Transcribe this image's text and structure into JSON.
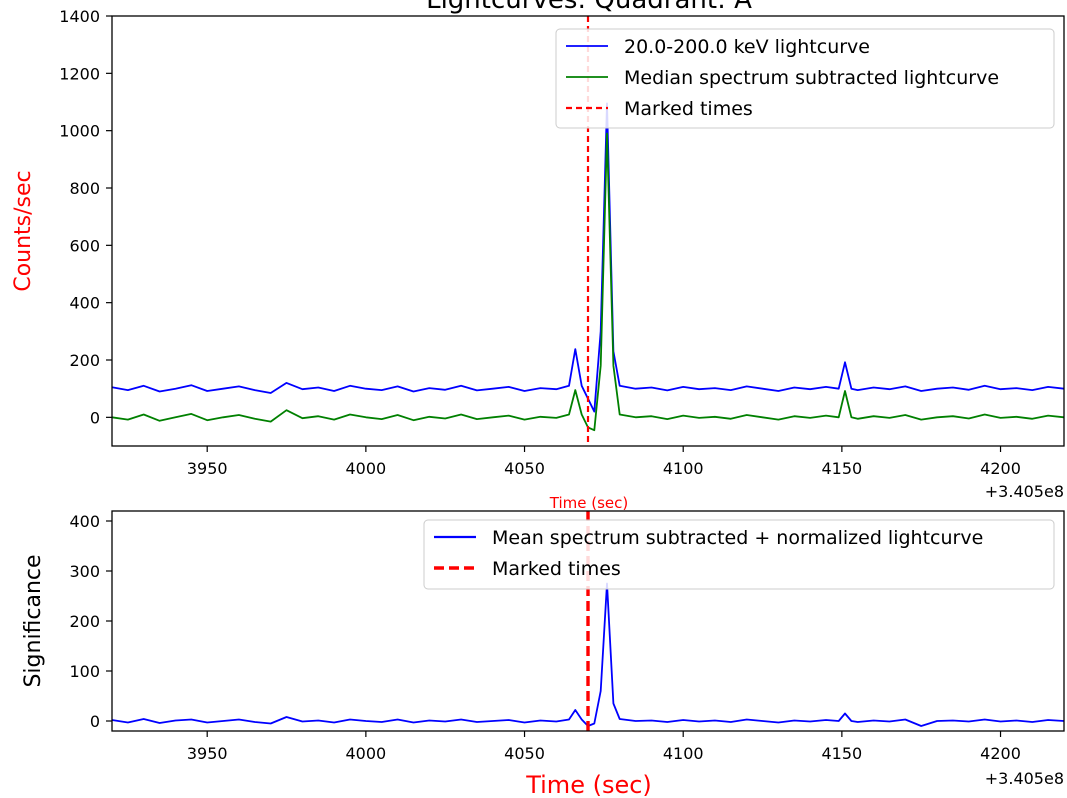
{
  "title": "Lightcurves: Quadrant: A",
  "axis_offset_label": "+3.405e8",
  "colors": {
    "lightcurve": "#0000ff",
    "median_subtracted": "#008000",
    "marked": "#ff0000"
  },
  "chart_data": [
    {
      "type": "line",
      "title": "Lightcurves: Quadrant: A",
      "xlabel": "Time (sec)",
      "ylabel": "Counts/sec",
      "xlim": [
        3920,
        4220
      ],
      "ylim": [
        -100,
        1400
      ],
      "x_offset": "+3.405e8",
      "x_ticks": [
        3950,
        4000,
        4050,
        4100,
        4150,
        4200
      ],
      "y_ticks": [
        0,
        200,
        400,
        600,
        800,
        1000,
        1200,
        1400
      ],
      "grid": false,
      "legend_position": "top-right",
      "series": [
        {
          "name": "20.0-200.0 keV lightcurve",
          "color": "#0000ff",
          "x": [
            3920,
            3925,
            3930,
            3935,
            3940,
            3945,
            3950,
            3955,
            3960,
            3965,
            3970,
            3975,
            3980,
            3985,
            3990,
            3995,
            4000,
            4005,
            4010,
            4015,
            4020,
            4025,
            4030,
            4035,
            4040,
            4045,
            4050,
            4055,
            4060,
            4064,
            4066,
            4068,
            4070,
            4072,
            4074,
            4076,
            4078,
            4080,
            4085,
            4090,
            4095,
            4100,
            4105,
            4110,
            4115,
            4120,
            4125,
            4130,
            4135,
            4140,
            4145,
            4149,
            4151,
            4153,
            4155,
            4160,
            4165,
            4170,
            4175,
            4180,
            4185,
            4190,
            4195,
            4200,
            4205,
            4210,
            4215,
            4220
          ],
          "y": [
            105,
            95,
            110,
            90,
            100,
            112,
            92,
            100,
            108,
            95,
            85,
            120,
            98,
            104,
            92,
            110,
            100,
            95,
            108,
            90,
            102,
            96,
            110,
            94,
            100,
            106,
            92,
            102,
            98,
            110,
            238,
            110,
            65,
            20,
            300,
            1095,
            230,
            110,
            100,
            104,
            94,
            106,
            98,
            102,
            95,
            108,
            100,
            92,
            104,
            98,
            106,
            100,
            192,
            100,
            95,
            104,
            98,
            108,
            92,
            100,
            104,
            96,
            110,
            98,
            102,
            95,
            106,
            100
          ]
        },
        {
          "name": "Median spectrum subtracted lightcurve",
          "color": "#008000",
          "x": [
            3920,
            3925,
            3930,
            3935,
            3940,
            3945,
            3950,
            3955,
            3960,
            3965,
            3970,
            3975,
            3980,
            3985,
            3990,
            3995,
            4000,
            4005,
            4010,
            4015,
            4020,
            4025,
            4030,
            4035,
            4040,
            4045,
            4050,
            4055,
            4060,
            4064,
            4066,
            4068,
            4070,
            4072,
            4074,
            4076,
            4078,
            4080,
            4085,
            4090,
            4095,
            4100,
            4105,
            4110,
            4115,
            4120,
            4125,
            4130,
            4135,
            4140,
            4145,
            4149,
            4151,
            4153,
            4155,
            4160,
            4165,
            4170,
            4175,
            4180,
            4185,
            4190,
            4195,
            4200,
            4205,
            4210,
            4215,
            4220
          ],
          "y": [
            0,
            -8,
            10,
            -12,
            0,
            12,
            -10,
            0,
            8,
            -5,
            -15,
            25,
            -3,
            4,
            -8,
            10,
            0,
            -6,
            8,
            -10,
            2,
            -4,
            10,
            -6,
            0,
            6,
            -8,
            2,
            -2,
            10,
            95,
            10,
            -35,
            -45,
            180,
            990,
            180,
            10,
            0,
            4,
            -6,
            6,
            -2,
            2,
            -5,
            8,
            0,
            -8,
            4,
            -2,
            6,
            0,
            92,
            0,
            -5,
            4,
            -2,
            8,
            -8,
            0,
            4,
            -4,
            10,
            -2,
            2,
            -5,
            6,
            0
          ]
        }
      ],
      "marked_times": [
        4070
      ],
      "marked_label": "Marked times"
    },
    {
      "type": "line",
      "xlabel": "Time (sec)",
      "ylabel": "Significance",
      "xlim": [
        3920,
        4220
      ],
      "ylim": [
        -20,
        420
      ],
      "x_offset": "+3.405e8",
      "x_ticks": [
        3950,
        4000,
        4050,
        4100,
        4150,
        4200
      ],
      "y_ticks": [
        0,
        100,
        200,
        300,
        400
      ],
      "grid": false,
      "legend_position": "top-right",
      "series": [
        {
          "name": "Mean spectrum subtracted + normalized lightcurve",
          "color": "#0000ff",
          "x": [
            3920,
            3925,
            3930,
            3935,
            3940,
            3945,
            3950,
            3955,
            3960,
            3965,
            3970,
            3975,
            3980,
            3985,
            3990,
            3995,
            4000,
            4005,
            4010,
            4015,
            4020,
            4025,
            4030,
            4035,
            4040,
            4045,
            4050,
            4055,
            4060,
            4064,
            4066,
            4068,
            4070,
            4072,
            4074,
            4076,
            4078,
            4080,
            4085,
            4090,
            4095,
            4100,
            4105,
            4110,
            4115,
            4120,
            4125,
            4130,
            4135,
            4140,
            4145,
            4149,
            4151,
            4153,
            4155,
            4160,
            4165,
            4170,
            4175,
            4180,
            4185,
            4190,
            4195,
            4200,
            4205,
            4210,
            4215,
            4220
          ],
          "y": [
            2,
            -3,
            4,
            -4,
            1,
            3,
            -3,
            0,
            3,
            -2,
            -5,
            8,
            -1,
            1,
            -3,
            3,
            0,
            -2,
            3,
            -3,
            1,
            -1,
            3,
            -2,
            0,
            2,
            -3,
            1,
            -1,
            3,
            22,
            3,
            -10,
            -5,
            60,
            275,
            35,
            4,
            0,
            1,
            -2,
            2,
            -1,
            1,
            -2,
            3,
            0,
            -3,
            1,
            -1,
            2,
            0,
            15,
            0,
            -2,
            1,
            -1,
            3,
            -10,
            0,
            1,
            -1,
            3,
            -1,
            1,
            -2,
            2,
            0
          ]
        }
      ],
      "marked_times": [
        4070
      ],
      "marked_label": "Marked times"
    }
  ]
}
